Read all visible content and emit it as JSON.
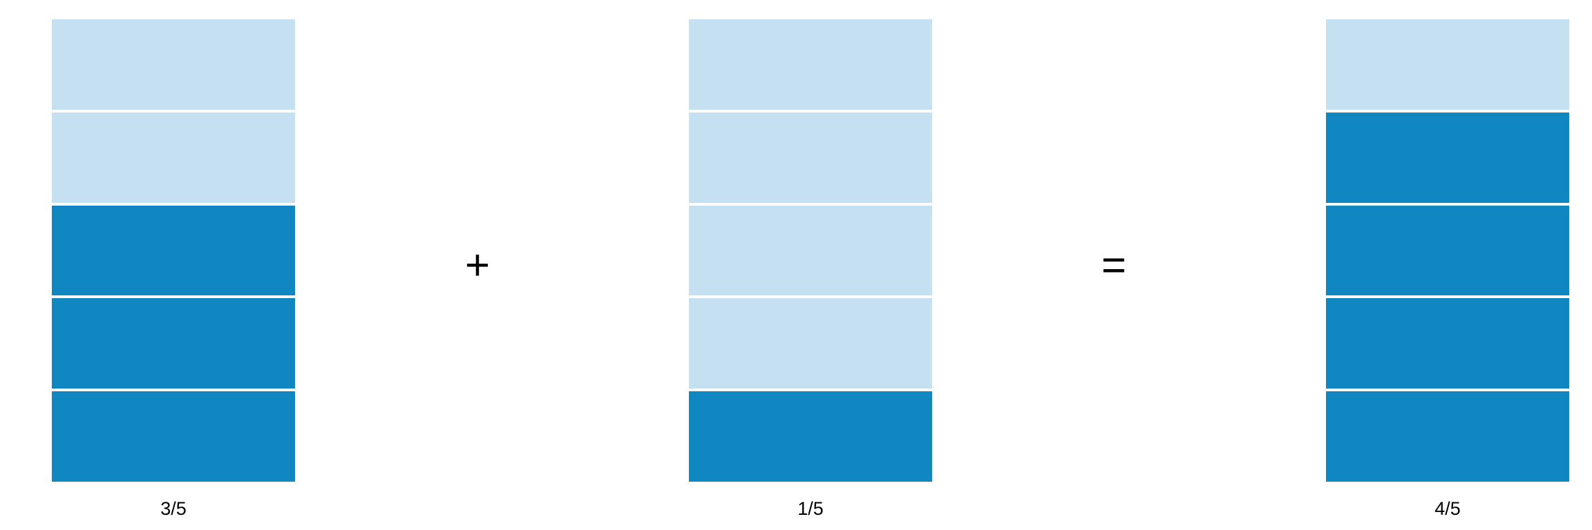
{
  "colors": {
    "filled": "#1187c2",
    "empty": "#c5e1f1",
    "divider": "#ffffff"
  },
  "fractions": [
    {
      "numerator": 3,
      "denominator": 5,
      "label": "3/5"
    },
    {
      "numerator": 1,
      "denominator": 5,
      "label": "1/5"
    },
    {
      "numerator": 4,
      "denominator": 5,
      "label": "4/5"
    }
  ],
  "operators": {
    "plus": "+",
    "equals": "="
  }
}
